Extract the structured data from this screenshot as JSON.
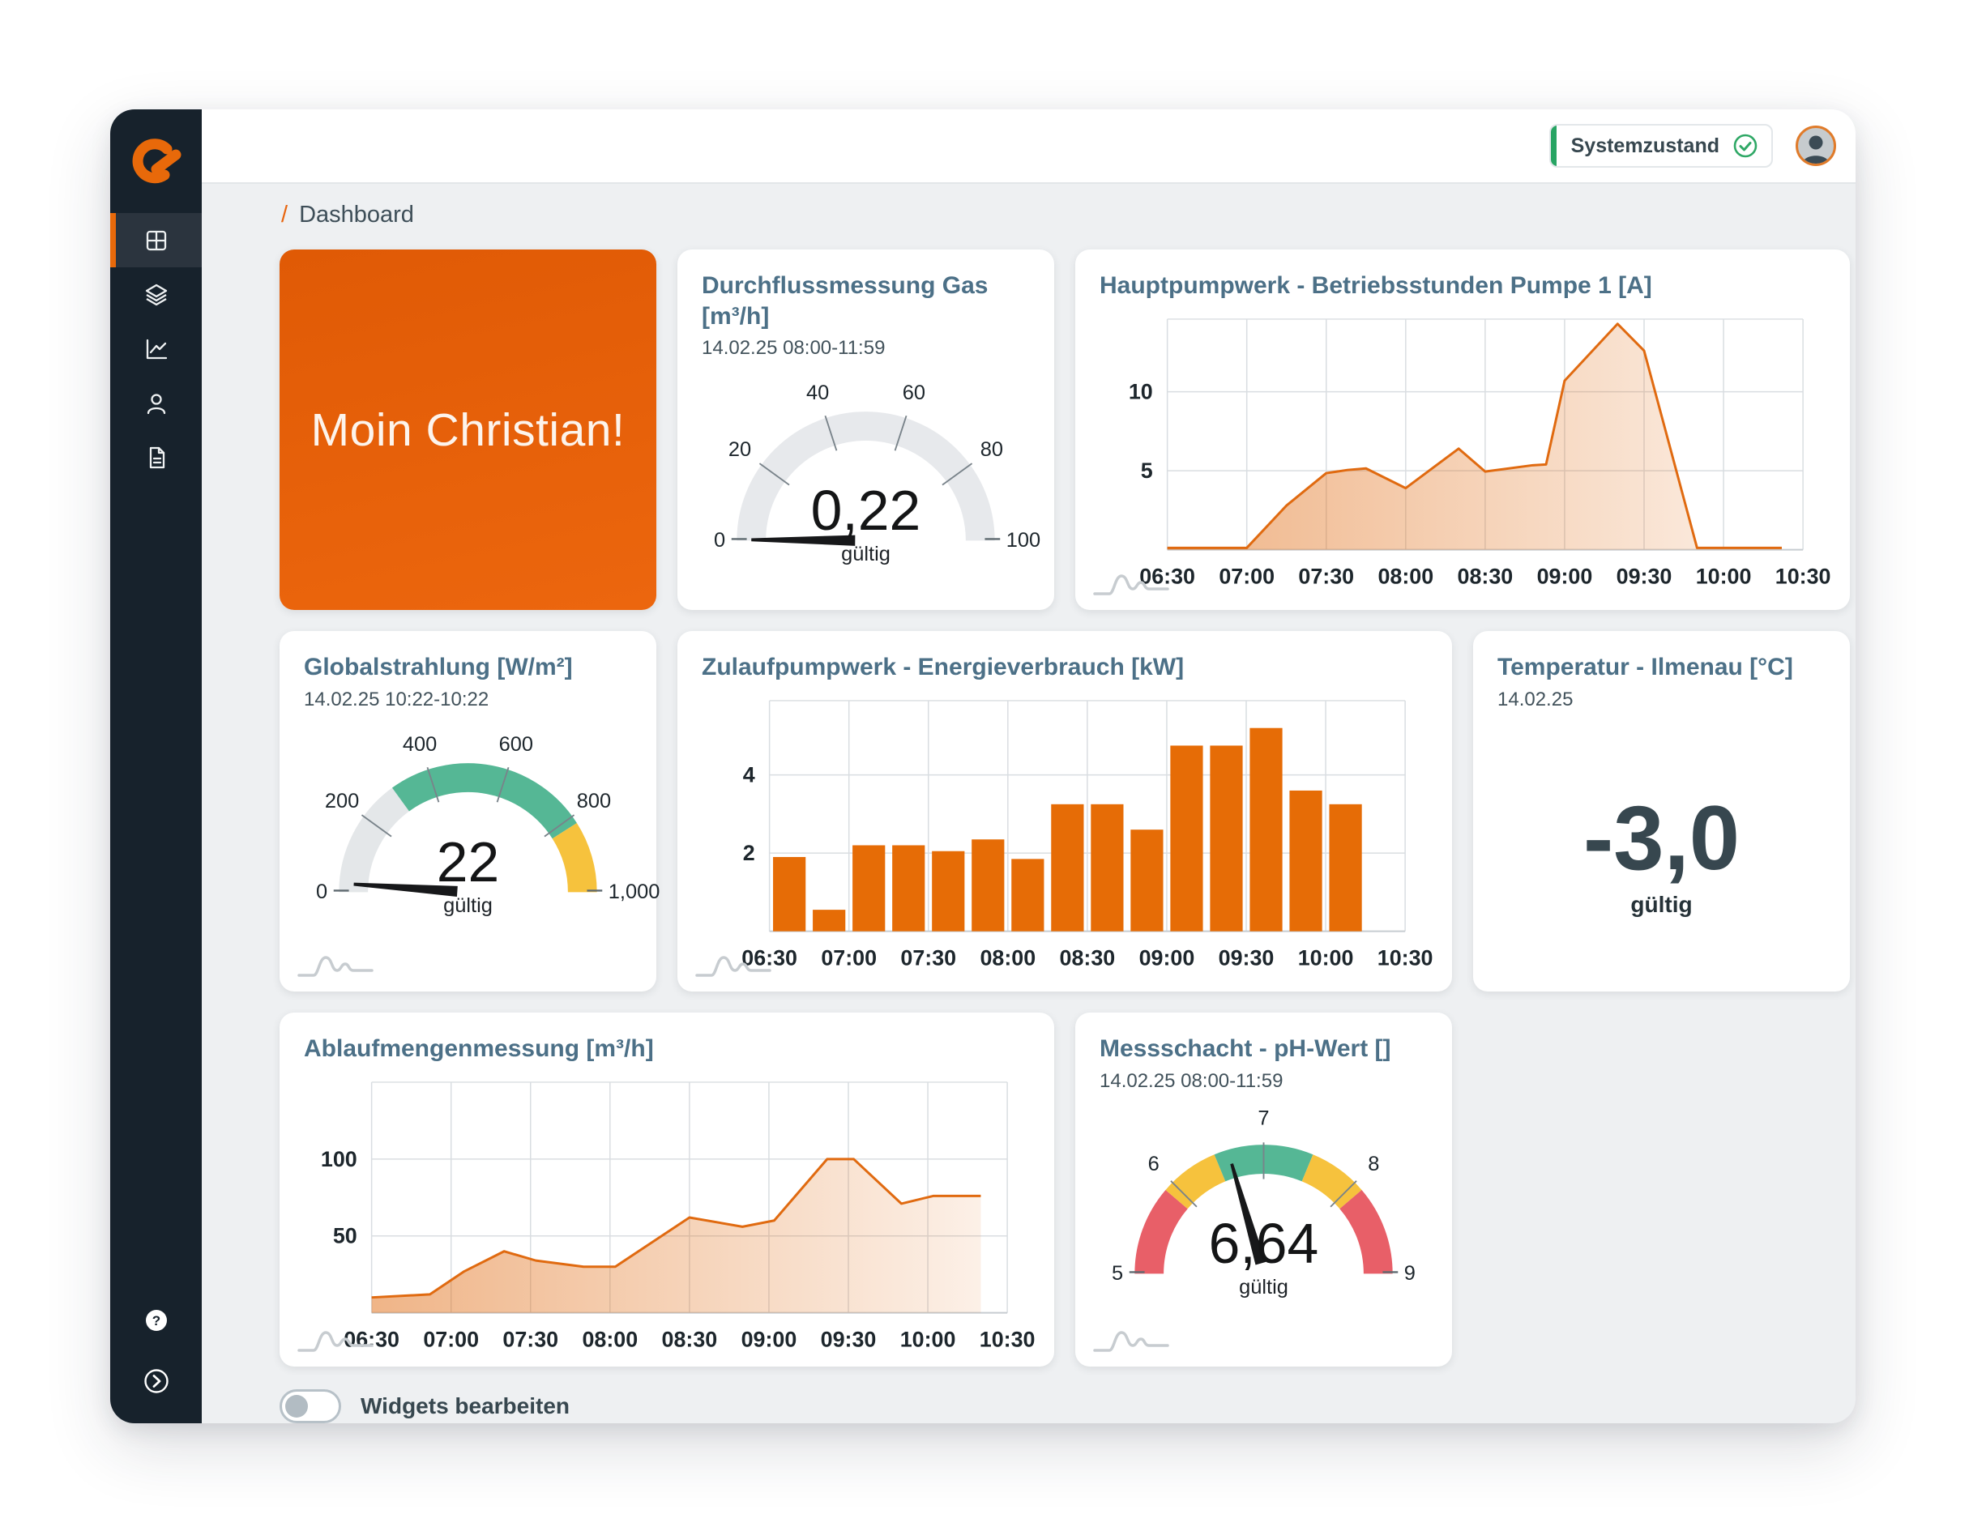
{
  "topbar": {
    "status_label": "Systemzustand"
  },
  "breadcrumb": {
    "separator": "/",
    "page": "Dashboard"
  },
  "hero": {
    "greeting": "Moin Christian!"
  },
  "sidebar": {
    "items": [
      {
        "icon": "dashboard-grid-icon",
        "active": true
      },
      {
        "icon": "layers-icon",
        "active": false
      },
      {
        "icon": "line-chart-icon",
        "active": false
      },
      {
        "icon": "user-icon",
        "active": false
      },
      {
        "icon": "document-icon",
        "active": false
      }
    ],
    "bottom": [
      {
        "icon": "help-icon"
      },
      {
        "icon": "collapse-arrow-icon"
      }
    ]
  },
  "footer": {
    "toggle_label": "Widgets bearbeiten",
    "toggle_state": "off"
  },
  "colors": {
    "accent_orange": "#e8690a",
    "hero_gradient_top": "#e05a05",
    "hero_gradient_bottom": "#ec660e",
    "status_green": "#27a463",
    "gauge_green": "#55b795",
    "gauge_yellow": "#f6c23d",
    "gauge_red": "#e85f68",
    "gauge_gray": "#e7e9ec",
    "sidebar_dark": "#17222c",
    "title_blue": "#4c7087"
  },
  "chart_data": [
    {
      "id": "gas_gauge",
      "type": "gauge",
      "title": "Durchflussmessung Gas [m³/h]",
      "subtitle": "14.02.25 08:00-11:59",
      "value": 0.22,
      "display_value": "0,22",
      "status": "gültig",
      "min": 0,
      "max": 100,
      "ticks": [
        0,
        20,
        40,
        60,
        80,
        100
      ],
      "tick_labels": [
        "0",
        "20",
        "40",
        "60",
        "80",
        "100"
      ],
      "segments": [
        {
          "from": 0,
          "to": 100,
          "color": "#e7e9ec"
        }
      ],
      "has_watermark": false
    },
    {
      "id": "pump_hours",
      "type": "area",
      "title": "Hauptpumpwerk - Betriebsstunden Pumpe 1 [A]",
      "x_ticks": [
        "06:30",
        "07:00",
        "07:30",
        "08:00",
        "08:30",
        "09:00",
        "09:30",
        "10:00",
        "10:30"
      ],
      "x_range_min": 240,
      "y_ticks": [
        5,
        10
      ],
      "ylim": [
        0,
        14.6
      ],
      "line_color": "#e06a10",
      "points": [
        [
          0,
          0.12
        ],
        [
          30,
          0.12
        ],
        [
          45,
          2.8
        ],
        [
          60,
          4.85
        ],
        [
          68,
          5.05
        ],
        [
          75,
          5.15
        ],
        [
          90,
          3.9
        ],
        [
          110,
          6.4
        ],
        [
          120,
          4.95
        ],
        [
          138,
          5.35
        ],
        [
          143,
          5.4
        ],
        [
          150,
          10.7
        ],
        [
          170,
          14.3
        ],
        [
          180,
          12.6
        ],
        [
          200,
          0.12
        ],
        [
          232,
          0.12
        ]
      ],
      "has_watermark": true
    },
    {
      "id": "radiation_gauge",
      "type": "gauge",
      "title": "Globalstrahlung [W/m²]",
      "subtitle": "14.02.25 10:22-10:22",
      "value": 22,
      "display_value": "22",
      "status": "gültig",
      "min": 0,
      "max": 1000,
      "ticks": [
        0,
        200,
        400,
        600,
        800,
        1000
      ],
      "tick_labels": [
        "0",
        "200",
        "400",
        "600",
        "800",
        "1,000"
      ],
      "segments": [
        {
          "from": 0,
          "to": 300,
          "color": "#e4e7e9"
        },
        {
          "from": 300,
          "to": 820,
          "color": "#55b795"
        },
        {
          "from": 820,
          "to": 1000,
          "color": "#f6c23d"
        }
      ],
      "has_watermark": true
    },
    {
      "id": "energy_bars",
      "type": "bar",
      "title": "Zulaufpumpwerk - Energieverbrauch [kW]",
      "x_ticks": [
        "06:30",
        "07:00",
        "07:30",
        "08:00",
        "08:30",
        "09:00",
        "09:30",
        "10:00",
        "10:30"
      ],
      "x_range_min": 240,
      "bar_interval_min": 15,
      "y_ticks": [
        2,
        4
      ],
      "ylim": [
        0,
        5.9
      ],
      "bar_color": "#e66c06",
      "values": [
        1.9,
        0.55,
        2.2,
        2.2,
        2.05,
        2.35,
        1.85,
        3.25,
        3.25,
        2.6,
        4.75,
        4.75,
        5.2,
        3.6,
        3.25
      ],
      "has_watermark": true
    },
    {
      "id": "temp_value",
      "type": "value",
      "title": "Temperatur - Ilmenau [°C]",
      "subtitle": "14.02.25",
      "display_value": "-3,0",
      "status": "gültig",
      "has_watermark": false
    },
    {
      "id": "outflow_area",
      "type": "area",
      "title": "Ablaufmengenmessung [m³/h]",
      "x_ticks": [
        "06:30",
        "07:00",
        "07:30",
        "08:00",
        "08:30",
        "09:00",
        "09:30",
        "10:00",
        "10:30"
      ],
      "x_range_min": 240,
      "y_ticks": [
        50,
        100
      ],
      "ylim": [
        0,
        150
      ],
      "line_color": "#e06a10",
      "points": [
        [
          0,
          10
        ],
        [
          22,
          12
        ],
        [
          35,
          27
        ],
        [
          50,
          40
        ],
        [
          62,
          34
        ],
        [
          80,
          30
        ],
        [
          92,
          30
        ],
        [
          120,
          62
        ],
        [
          140,
          56
        ],
        [
          152,
          60
        ],
        [
          172,
          100
        ],
        [
          182,
          100
        ],
        [
          200,
          71
        ],
        [
          212,
          76
        ],
        [
          230,
          76
        ]
      ],
      "has_watermark": true
    },
    {
      "id": "ph_gauge",
      "type": "gauge",
      "title": "Messschacht - pH-Wert []",
      "subtitle": "14.02.25 08:00-11:59",
      "value": 6.64,
      "display_value": "6,64",
      "status": "gültig",
      "min": 5,
      "max": 9,
      "ticks": [
        5,
        6,
        7,
        8,
        9
      ],
      "tick_labels": [
        "5",
        "6",
        "7",
        "8",
        "9"
      ],
      "segments": [
        {
          "from": 5,
          "to": 5.9,
          "color": "#e85f68"
        },
        {
          "from": 5.9,
          "to": 6.5,
          "color": "#f6c23d"
        },
        {
          "from": 6.5,
          "to": 7.5,
          "color": "#55b795"
        },
        {
          "from": 7.5,
          "to": 8.1,
          "color": "#f6c23d"
        },
        {
          "from": 8.1,
          "to": 9,
          "color": "#e85f68"
        }
      ],
      "has_watermark": true
    }
  ]
}
